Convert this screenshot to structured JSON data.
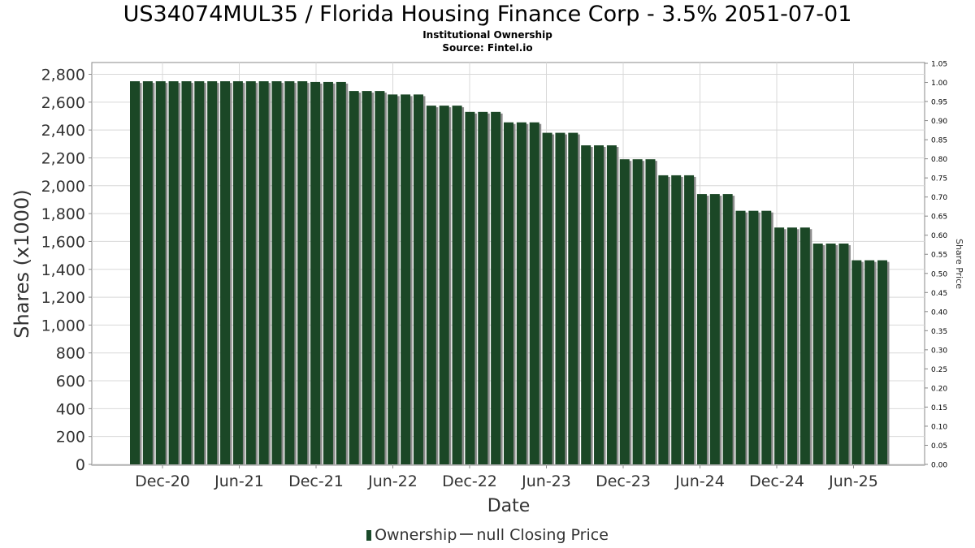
{
  "title": "US34074MUL35 / Florida Housing Finance Corp - 3.5% 2051-07-01",
  "subtitle": "Institutional Ownership",
  "source": "Source: Fintel.io",
  "colors": {
    "bar": "#1b4726",
    "bar_shadow": "#8c8c8c",
    "grid": "#d8d8d8",
    "axis": "#888888",
    "text": "#333333"
  },
  "chart_data": {
    "type": "bar",
    "xlabel": "Date",
    "ylabel": "Shares (x1000)",
    "y2label": "Share Price",
    "ylim": [
      0,
      2880
    ],
    "y2lim": [
      0,
      1.05
    ],
    "yticks": [
      0,
      200,
      400,
      600,
      800,
      1000,
      1200,
      1400,
      1600,
      1800,
      2000,
      2200,
      2400,
      2600,
      2800
    ],
    "yticklabels": [
      "0",
      "200",
      "400",
      "600",
      "800",
      "1,000",
      "1,200",
      "1,400",
      "1,600",
      "1,800",
      "2,000",
      "2,200",
      "2,400",
      "2,600",
      "2,800"
    ],
    "y2ticks": [
      0,
      0.05,
      0.1,
      0.15,
      0.2,
      0.25,
      0.3,
      0.35,
      0.4,
      0.45,
      0.5,
      0.55,
      0.6,
      0.65,
      0.7,
      0.75,
      0.8,
      0.85,
      0.9,
      0.95,
      1.0,
      1.05
    ],
    "y2ticklabels": [
      "0.00",
      "0.05",
      "0.10",
      "0.15",
      "0.20",
      "0.25",
      "0.30",
      "0.35",
      "0.40",
      "0.45",
      "0.50",
      "0.55",
      "0.60",
      "0.65",
      "0.70",
      "0.75",
      "0.80",
      "0.85",
      "0.90",
      "0.95",
      "1.00",
      "1.05"
    ],
    "xticklabels": [
      "Dec-20",
      "Jun-21",
      "Dec-21",
      "Jun-22",
      "Dec-22",
      "Jun-23",
      "Dec-23",
      "Jun-24",
      "Dec-24",
      "Jun-25"
    ],
    "grid": true,
    "legend": "bottom-center",
    "series": [
      {
        "name": "Ownership",
        "values": [
          2750,
          2750,
          2750,
          2750,
          2750,
          2750,
          2750,
          2750,
          2750,
          2750,
          2750,
          2750,
          2750,
          2750,
          2745,
          2745,
          2745,
          2680,
          2680,
          2680,
          2655,
          2655,
          2655,
          2575,
          2575,
          2575,
          2530,
          2530,
          2530,
          2455,
          2455,
          2455,
          2380,
          2380,
          2380,
          2290,
          2290,
          2290,
          2190,
          2190,
          2190,
          2075,
          2075,
          2075,
          1940,
          1940,
          1940,
          1820,
          1820,
          1820,
          1700,
          1700,
          1700,
          1585,
          1585,
          1585,
          1465,
          1465,
          1465
        ]
      },
      {
        "name": "null Closing Price",
        "values": []
      }
    ]
  }
}
